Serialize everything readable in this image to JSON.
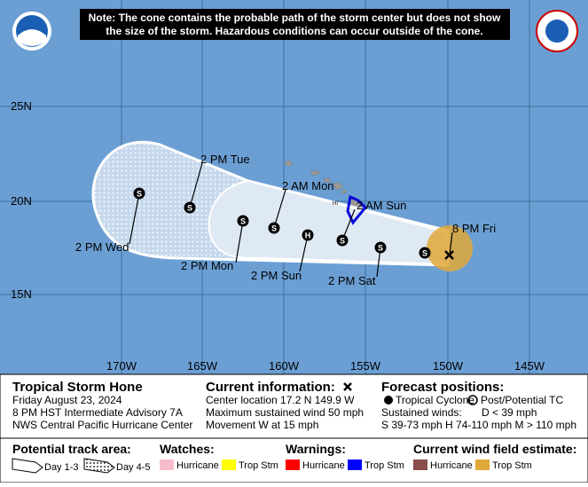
{
  "note": [
    "Note: The cone contains the probable path of the storm center but does not show",
    "the size of the storm. Hazardous conditions can occur outside of the cone."
  ],
  "map": {
    "lat_labels": [
      "25N",
      "20N",
      "15N"
    ],
    "lon_labels": [
      "170W",
      "165W",
      "160W",
      "155W",
      "150W",
      "145W"
    ],
    "state_label": "HI",
    "track_labels": [
      "8 PM Fri",
      "2 AM Sun",
      "2 PM Sat",
      "2 PM Sun",
      "2 AM Mon",
      "2 PM Mon",
      "2 PM Tue",
      "2 PM Wed"
    ],
    "markers": [
      "S",
      "S",
      "S",
      "H",
      "S",
      "S",
      "S",
      "S"
    ]
  },
  "info": {
    "storm_name": "Tropical Storm Hone",
    "details": [
      "Friday August 23, 2024",
      "8 PM HST Intermediate Advisory 7A",
      "NWS Central Pacific Hurricane Center"
    ],
    "current_title": "Current information:",
    "current": [
      "Center location 17.2 N 149.9 W",
      "Maximum sustained wind 50 mph",
      "Movement W at 15 mph"
    ],
    "forecast_title": "Forecast positions:",
    "forecast_tc": "Tropical Cyclone",
    "forecast_post": "Post/Potential TC",
    "sustained": "Sustained winds:",
    "d_wind": "D < 39 mph",
    "sh_wind": "S 39-73 mph  H 74-110 mph  M > 110 mph"
  },
  "legend": {
    "track_title": "Potential track area:",
    "day13": "Day 1-3",
    "day45": "Day 4-5",
    "watches_title": "Watches:",
    "watches": [
      "Hurricane",
      "Trop Stm"
    ],
    "warnings_title": "Warnings:",
    "warnings": [
      "Hurricane",
      "Trop Stm"
    ],
    "wind_title": "Current wind field estimate:",
    "wind": [
      "Hurricane",
      "Trop Stm"
    ]
  }
}
